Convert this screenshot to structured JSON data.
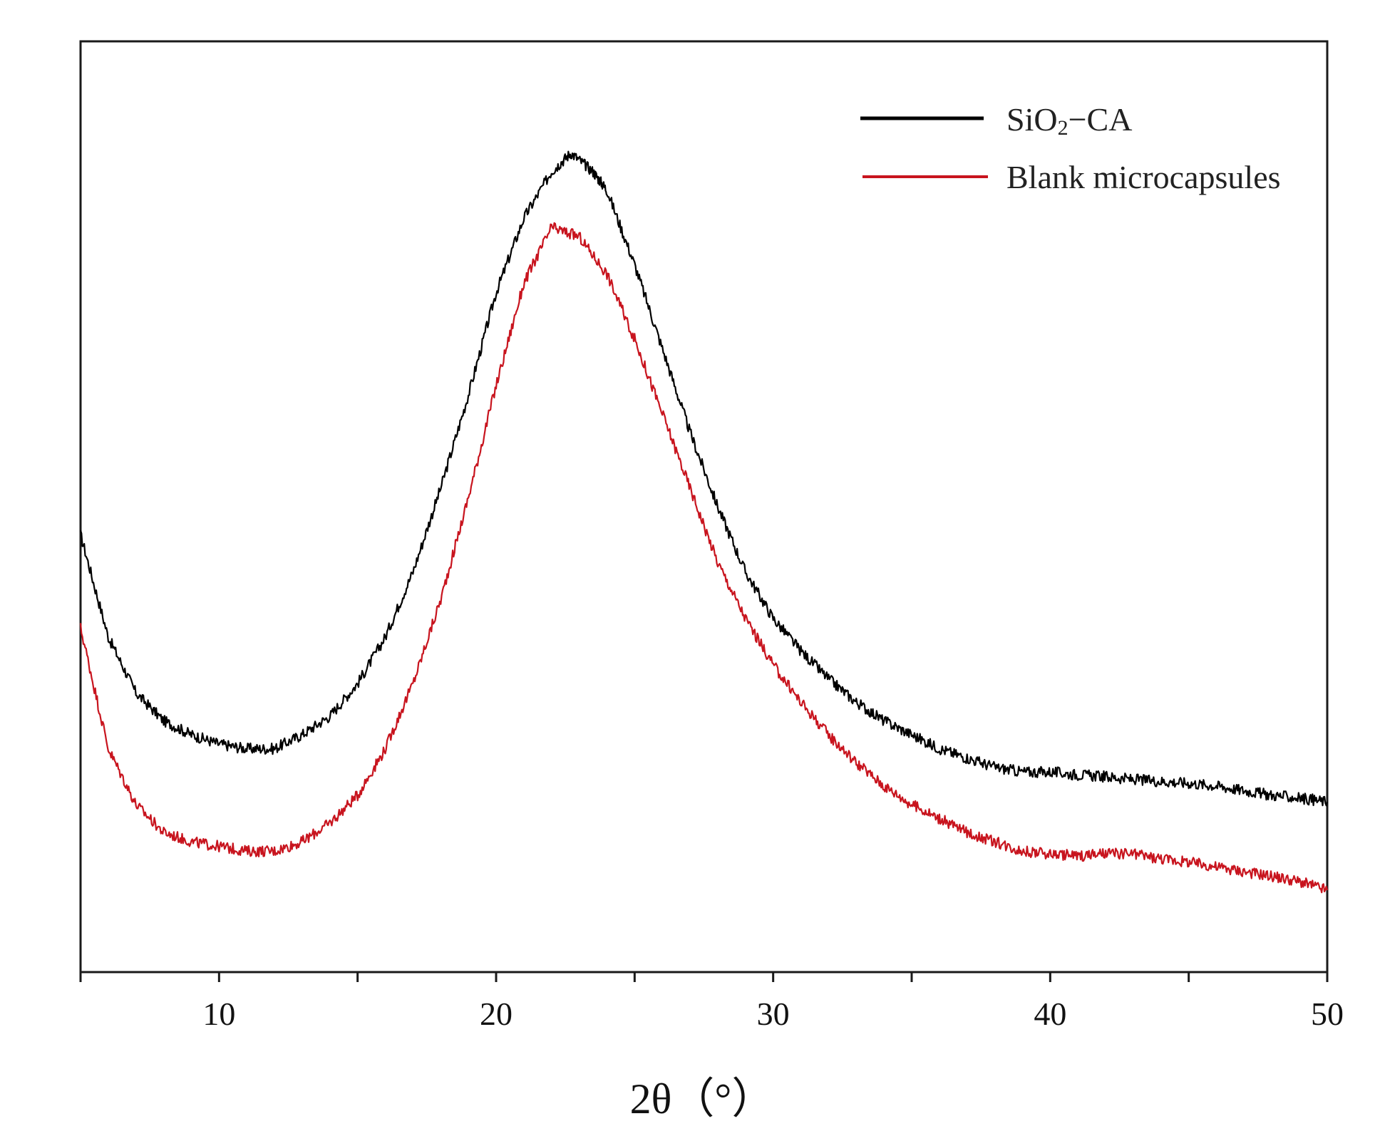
{
  "chart_data": {
    "type": "line",
    "title": "",
    "xlabel": "2θ（°）",
    "ylabel": "",
    "xlim": [
      5,
      50
    ],
    "ylim": [
      0,
      1
    ],
    "yticks_shown": false,
    "grid": false,
    "legend_position": "top-right",
    "xticks": [
      {
        "value": 5,
        "label": ""
      },
      {
        "value": 10,
        "label": "10"
      },
      {
        "value": 15,
        "label": ""
      },
      {
        "value": 20,
        "label": "20"
      },
      {
        "value": 25,
        "label": ""
      },
      {
        "value": 30,
        "label": "30"
      },
      {
        "value": 35,
        "label": ""
      },
      {
        "value": 40,
        "label": "40"
      },
      {
        "value": 45,
        "label": ""
      },
      {
        "value": 50,
        "label": "50"
      }
    ],
    "series": [
      {
        "name": "SiO2-CA",
        "legend_main": "SiO",
        "legend_sub": "2",
        "legend_tail": "−CA",
        "color": "#000000",
        "x": [
          5,
          6,
          7,
          8,
          9,
          10,
          11,
          12,
          13,
          14,
          15,
          16,
          17,
          18,
          19,
          20,
          21,
          22,
          22.7,
          23.5,
          24,
          25,
          26,
          27,
          28,
          29,
          30,
          31,
          32,
          33,
          34,
          35,
          36,
          37,
          38,
          39,
          40,
          41,
          42,
          43,
          44,
          45,
          46,
          47,
          48,
          49,
          50
        ],
        "y": [
          0.47,
          0.36,
          0.3,
          0.27,
          0.255,
          0.245,
          0.24,
          0.24,
          0.255,
          0.275,
          0.31,
          0.36,
          0.43,
          0.52,
          0.62,
          0.73,
          0.81,
          0.86,
          0.88,
          0.86,
          0.84,
          0.76,
          0.67,
          0.58,
          0.5,
          0.43,
          0.38,
          0.345,
          0.315,
          0.29,
          0.27,
          0.255,
          0.24,
          0.23,
          0.22,
          0.215,
          0.215,
          0.212,
          0.21,
          0.207,
          0.205,
          0.203,
          0.2,
          0.195,
          0.19,
          0.187,
          0.183
        ]
      },
      {
        "name": "Blank microcapsules",
        "legend_main": "Blank microcapsules",
        "legend_sub": "",
        "legend_tail": "",
        "color": "#c8141e",
        "x": [
          5,
          6,
          7,
          8,
          9,
          10,
          11,
          12,
          13,
          14,
          15,
          16,
          17,
          18,
          19,
          20,
          21,
          22,
          23,
          24,
          25,
          26,
          27,
          28,
          29,
          30,
          31,
          32,
          33,
          34,
          35,
          36,
          37,
          38,
          39,
          40,
          41,
          42,
          43,
          44,
          45,
          46,
          47,
          48,
          49,
          50
        ],
        "y": [
          0.37,
          0.24,
          0.18,
          0.15,
          0.14,
          0.135,
          0.13,
          0.13,
          0.14,
          0.16,
          0.19,
          0.24,
          0.31,
          0.4,
          0.51,
          0.63,
          0.74,
          0.8,
          0.79,
          0.75,
          0.68,
          0.6,
          0.52,
          0.44,
          0.38,
          0.33,
          0.29,
          0.255,
          0.225,
          0.2,
          0.18,
          0.165,
          0.15,
          0.14,
          0.13,
          0.127,
          0.125,
          0.127,
          0.127,
          0.122,
          0.118,
          0.113,
          0.108,
          0.103,
          0.097,
          0.088
        ]
      }
    ]
  }
}
